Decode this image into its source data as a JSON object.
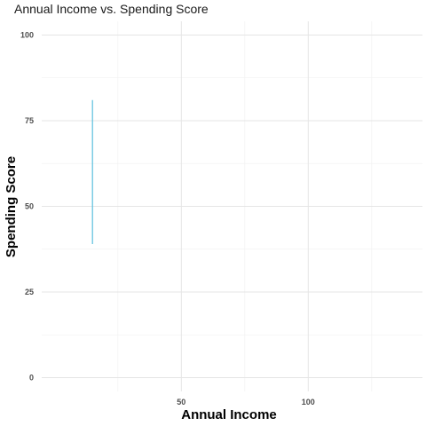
{
  "chart_data": {
    "type": "line",
    "title": "Annual Income vs. Spending Score",
    "xlabel": "Annual Income",
    "ylabel": "Spending Score",
    "xlim": [
      -5,
      145
    ],
    "ylim": [
      -4,
      104
    ],
    "x_ticks": [
      50,
      100
    ],
    "y_ticks": [
      0,
      25,
      50,
      75,
      100
    ],
    "grid": true,
    "series": [
      {
        "color": "#5bc0de",
        "points": [
          {
            "x": 15,
            "y": 39
          },
          {
            "x": 15,
            "y": 81
          }
        ]
      }
    ]
  }
}
